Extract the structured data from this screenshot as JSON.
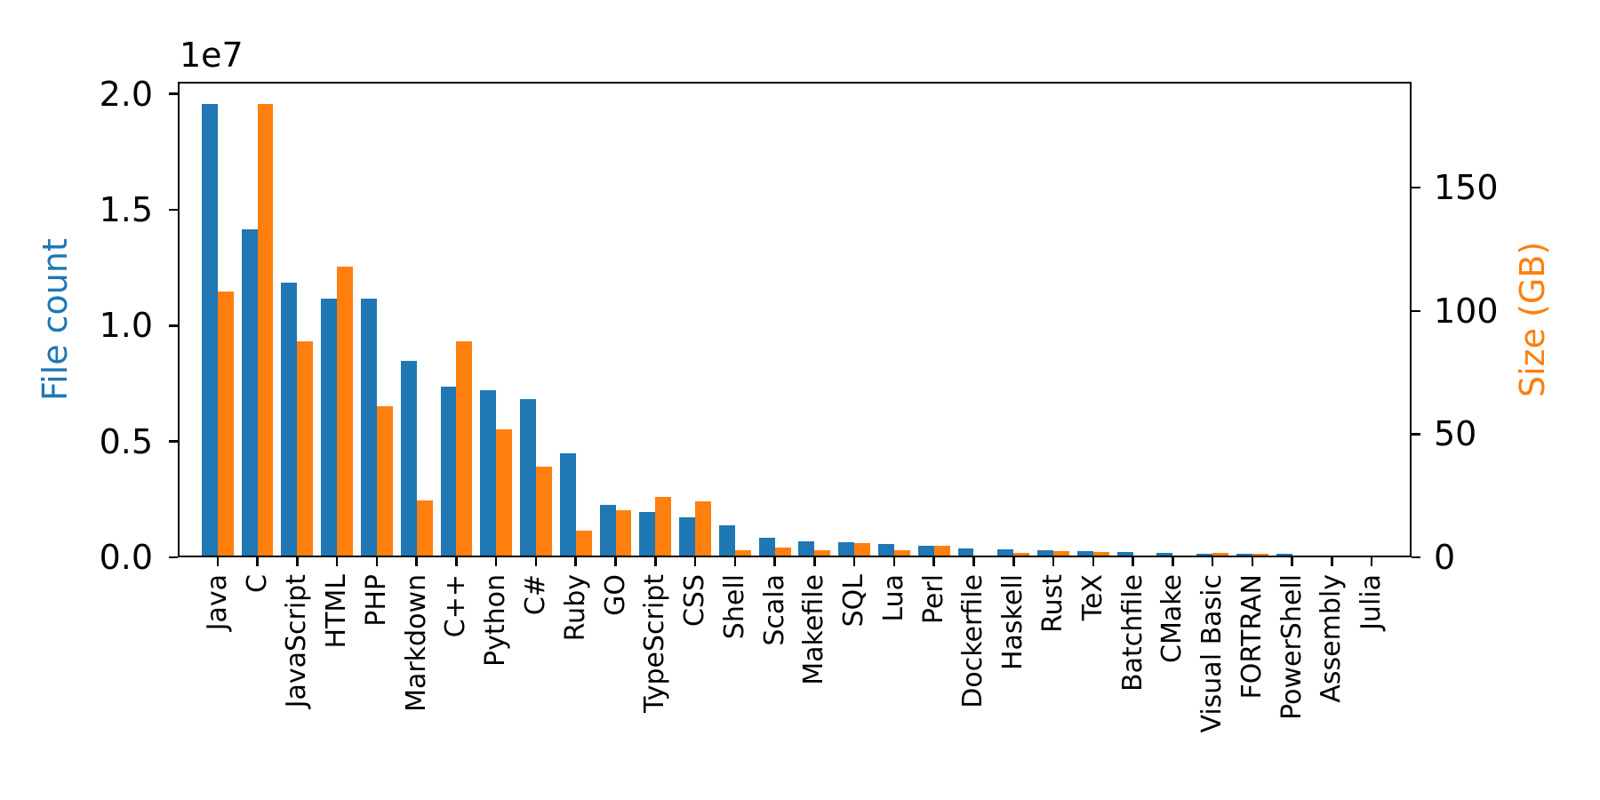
{
  "figure": {
    "background": "#ffffff"
  },
  "chart_data": {
    "type": "bar",
    "title": "",
    "legend": "none",
    "grid": false,
    "categories": [
      "Java",
      "C",
      "JavaScript",
      "HTML",
      "PHP",
      "Markdown",
      "C++",
      "Python",
      "C#",
      "Ruby",
      "GO",
      "TypeScript",
      "CSS",
      "Shell",
      "Scala",
      "Makefile",
      "SQL",
      "Lua",
      "Perl",
      "Dockerfile",
      "Haskell",
      "Rust",
      "TeX",
      "Batchfile",
      "CMake",
      "Visual Basic",
      "FORTRAN",
      "PowerShell",
      "Assembly",
      "Julia"
    ],
    "series": [
      {
        "name": "File count",
        "axis": "left",
        "color": "#1f77b4",
        "values": [
          19548190,
          14143113,
          11839883,
          11178557,
          11177610,
          8464626,
          7380520,
          7226626,
          6811652,
          4473331,
          2265436,
          1940406,
          1734406,
          1385648,
          835755,
          679430,
          656671,
          578554,
          497949,
          366505,
          340623,
          322431,
          251015,
          236945,
          175282,
          155652,
          142038,
          136846,
          82905,
          58317
        ]
      },
      {
        "name": "Size (GB)",
        "axis": "right",
        "color": "#ff7f0e",
        "values": [
          107.7,
          183.83,
          87.82,
          118.12,
          61.41,
          23.09,
          87.73,
          52.03,
          36.83,
          10.95,
          19.28,
          24.59,
          22.67,
          3.01,
          3.87,
          2.92,
          5.67,
          2.81,
          4.7,
          0.71,
          1.85,
          2.68,
          2.15,
          0.7,
          0.54,
          1.91,
          1.62,
          0.69,
          0.78,
          0.29
        ]
      }
    ],
    "left_axis": {
      "label": "File count",
      "color": "#1f77b4",
      "tick_labels": [
        "0.0",
        "0.5",
        "1.0",
        "1.5",
        "2.0"
      ],
      "tick_values": [
        0,
        5000000,
        10000000,
        15000000,
        20000000
      ],
      "offset_text": "1e7",
      "range": [
        0,
        20525600
      ]
    },
    "right_axis": {
      "label": "Size (GB)",
      "color": "#ff7f0e",
      "tick_labels": [
        "0",
        "50",
        "100",
        "150"
      ],
      "tick_values": [
        0,
        50,
        100,
        150
      ],
      "range": [
        0,
        193.0
      ]
    },
    "x_axis": {
      "tick_rotation": 90
    }
  }
}
